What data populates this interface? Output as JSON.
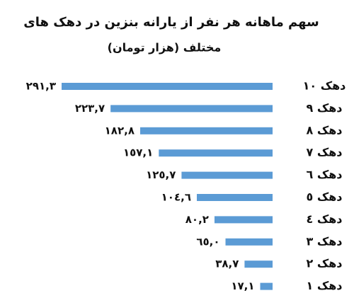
{
  "chart_data": {
    "type": "hbar",
    "title": "سهم ماهانه هر نفر از یارانه بنزین در دهک های",
    "subtitle": "مختلف (هزار تومان)",
    "categories": [
      "دهک ۱۰",
      "دهک ۹",
      "دهک ۸",
      "دهک ۷",
      "دهک ٦",
      "دهک ٥",
      "دهک ٤",
      "دهک ۳",
      "دهک ۲",
      "دهک ۱"
    ],
    "values": [
      291.3,
      223.7,
      182.8,
      157.1,
      125.7,
      104.6,
      80.2,
      65.0,
      38.7,
      17.1
    ],
    "value_labels": [
      "۲۹۱,۳",
      "۲۲۳,۷",
      "۱۸۲,۸",
      "۱٥۷,۱",
      "۱۲٥,۷",
      "۱۰٤,٦",
      "۸۰,۲",
      "٦٥,۰",
      "۳۸,۷",
      "۱۷,۱"
    ],
    "color": "#5b9bd5"
  }
}
